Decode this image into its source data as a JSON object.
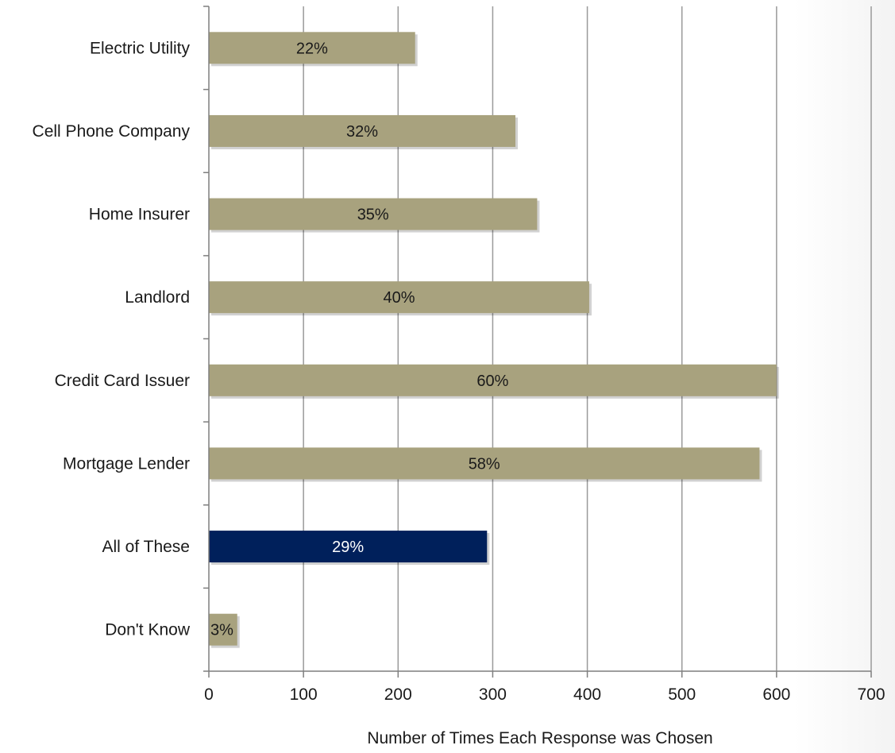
{
  "chart_data": {
    "type": "bar",
    "orientation": "horizontal",
    "categories": [
      "Electric Utility",
      "Cell Phone Company",
      "Home Insurer",
      "Landlord",
      "Credit Card Issuer",
      "Mortgage Lender",
      "All of These",
      "Don't Know"
    ],
    "values": [
      218,
      324,
      347,
      402,
      600,
      582,
      294,
      30
    ],
    "data_labels": [
      "22%",
      "32%",
      "35%",
      "40%",
      "60%",
      "58%",
      "29%",
      "3%"
    ],
    "highlight_index": 6,
    "xlabel": "Number of Times Each Response was Chosen",
    "ylabel": "",
    "xlim": [
      0,
      700
    ],
    "xticks": [
      "0",
      "100",
      "200",
      "300",
      "400",
      "500",
      "600",
      "700"
    ],
    "grid": "vertical",
    "legend": "none",
    "colors": {
      "bar": "#a8a27e",
      "highlight": "#00205b",
      "label": "#1a1a1a",
      "highlight_label": "#ffffff",
      "grid": "#9a9a9a",
      "axis": "#7f7f7f"
    }
  }
}
